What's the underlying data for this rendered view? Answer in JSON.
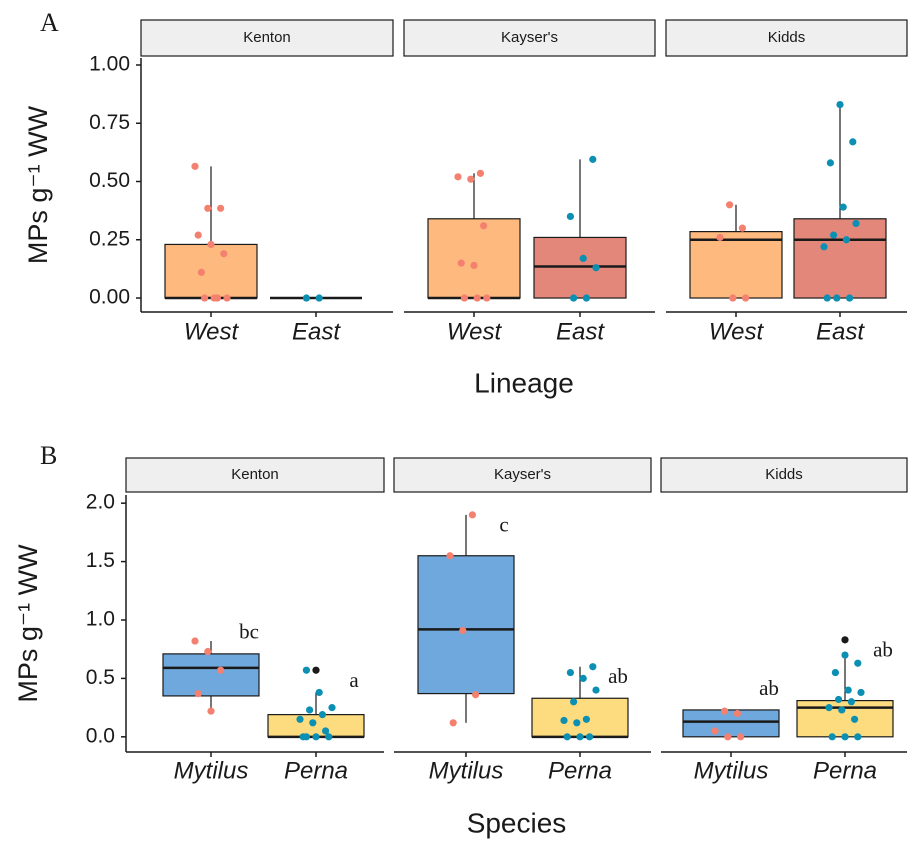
{
  "chart_data": [
    {
      "type": "box",
      "panel": "A",
      "ylabel": "MPs g⁻¹ WW",
      "xlabel": "Lineage",
      "ylim": [
        -0.06,
        1.03
      ],
      "yticks": [
        {
          "value": 0,
          "label": "0.00"
        },
        {
          "value": 0.25,
          "label": "0.25"
        },
        {
          "value": 0.5,
          "label": "0.50"
        },
        {
          "value": 0.75,
          "label": "0.75"
        },
        {
          "value": 1,
          "label": "1.00"
        }
      ],
      "box_colors": [
        "#fdb97e",
        "#e2877a"
      ],
      "point_colors": [
        "#f4806f",
        "#0b8fb3"
      ],
      "outlier_color": "#1a1a1a",
      "facets": [
        {
          "title": "Kenton",
          "categories": [
            "West",
            "East"
          ],
          "boxes": [
            {
              "whisker_low": 0,
              "q1": 0,
              "median": 0,
              "q3": 0.23,
              "whisker_high": 0.565,
              "points": [
                0.565,
                0.385,
                0.385,
                0.27,
                0.23,
                0.19,
                0.11,
                0,
                0,
                0,
                0
              ]
            },
            {
              "whisker_low": 0,
              "q1": 0,
              "median": 0,
              "q3": 0,
              "whisker_high": 0,
              "points": [
                0,
                0
              ]
            }
          ]
        },
        {
          "title": "Kayser's",
          "categories": [
            "West",
            "East"
          ],
          "boxes": [
            {
              "whisker_low": 0,
              "q1": 0,
              "median": 0,
              "q3": 0.34,
              "whisker_high": 0.535,
              "points": [
                0.535,
                0.52,
                0.51,
                0.31,
                0.15,
                0.14,
                0,
                0,
                0
              ]
            },
            {
              "whisker_low": 0,
              "q1": 0,
              "median": 0.135,
              "q3": 0.26,
              "whisker_high": 0.595,
              "points": [
                0.595,
                0.35,
                0.17,
                0.13,
                0,
                0
              ]
            }
          ]
        },
        {
          "title": "Kidds",
          "categories": [
            "West",
            "East"
          ],
          "boxes": [
            {
              "whisker_low": 0,
              "q1": 0,
              "median": 0.25,
              "q3": 0.285,
              "whisker_high": 0.4,
              "points": [
                0.4,
                0.3,
                0.26,
                0,
                0
              ]
            },
            {
              "whisker_low": 0,
              "q1": 0,
              "median": 0.25,
              "q3": 0.34,
              "whisker_high": 0.83,
              "points": [
                0.83,
                0.67,
                0.58,
                0.39,
                0.32,
                0.27,
                0.25,
                0.22,
                0,
                0,
                0
              ]
            }
          ]
        }
      ]
    },
    {
      "type": "box",
      "panel": "B",
      "ylabel": "MPs g⁻¹ WW",
      "xlabel": "Species",
      "ylim": [
        -0.13,
        2.07
      ],
      "yticks": [
        {
          "value": 0,
          "label": "0.0"
        },
        0.5,
        {
          "value": 1,
          "label": "1.0"
        },
        1.5,
        {
          "value": 2,
          "label": "2.0"
        }
      ],
      "box_colors": [
        "#6fa8dc",
        "#fddc7f"
      ],
      "point_colors": [
        "#f4806f",
        "#0b8fb3"
      ],
      "outlier_color": "#1a1a1a",
      "facets": [
        {
          "title": "Kenton",
          "categories": [
            "Mytilus",
            "Perna"
          ],
          "boxes": [
            {
              "whisker_low": 0.22,
              "q1": 0.35,
              "median": 0.59,
              "q3": 0.71,
              "whisker_high": 0.82,
              "points": [
                0.82,
                0.73,
                0.57,
                0.37,
                0.22
              ],
              "annotation": "bc"
            },
            {
              "whisker_low": 0,
              "q1": 0,
              "median": 0,
              "q3": 0.19,
              "whisker_high": 0.38,
              "outliers": [
                0.57
              ],
              "points": [
                0.57,
                0.38,
                0.25,
                0.23,
                0.19,
                0.15,
                0.12,
                0.05,
                0,
                0,
                0,
                0
              ],
              "annotation": "a"
            }
          ]
        },
        {
          "title": "Kayser's",
          "categories": [
            "Mytilus",
            "Perna"
          ],
          "boxes": [
            {
              "whisker_low": 0.12,
              "q1": 0.37,
              "median": 0.92,
              "q3": 1.55,
              "whisker_high": 1.9,
              "points": [
                1.9,
                1.55,
                0.91,
                0.36,
                0.12
              ],
              "annotation": "c"
            },
            {
              "whisker_low": 0,
              "q1": 0,
              "median": 0,
              "q3": 0.33,
              "whisker_high": 0.6,
              "points": [
                0.6,
                0.55,
                0.5,
                0.4,
                0.3,
                0.15,
                0.14,
                0.12,
                0,
                0,
                0
              ],
              "annotation": "ab"
            }
          ]
        },
        {
          "title": "Kidds",
          "categories": [
            "Mytilus",
            "Perna"
          ],
          "boxes": [
            {
              "whisker_low": 0,
              "q1": 0,
              "median": 0.13,
              "q3": 0.23,
              "whisker_high": 0.23,
              "points": [
                0.22,
                0.2,
                0.05,
                0,
                0
              ],
              "annotation": "ab"
            },
            {
              "whisker_low": 0,
              "q1": 0,
              "median": 0.25,
              "q3": 0.31,
              "whisker_high": 0.7,
              "outliers": [
                0.83
              ],
              "points": [
                0.7,
                0.63,
                0.55,
                0.4,
                0.38,
                0.32,
                0.3,
                0.25,
                0.23,
                0.15,
                0,
                0,
                0
              ],
              "annotation": "ab"
            }
          ]
        }
      ]
    }
  ]
}
